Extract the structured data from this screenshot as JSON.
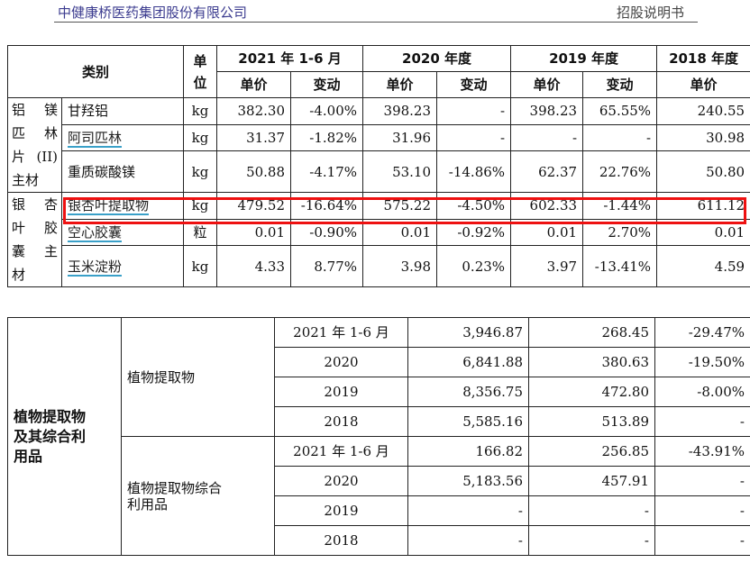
{
  "header": {
    "company": "中健康桥医药集团股份有限公司",
    "doc_type": "招股说明书"
  },
  "table1": {
    "col_category": "类别",
    "col_unit": "单位",
    "periods": [
      "2021 年 1-6 月",
      "2020 年度",
      "2019 年度",
      "2018 年度"
    ],
    "sub_price": "单价",
    "sub_change": "变动",
    "groups": [
      {
        "name": "铝镁匹林片(II)主材",
        "name_lines": [
          "铝 镁",
          "匹 林",
          "片(II)",
          "主材"
        ],
        "rows": [
          {
            "item": "甘羟铝",
            "unit": "kg",
            "vals": [
              "382.30",
              "-4.00%",
              "398.23",
              "-",
              "398.23",
              "65.55%",
              "240.55"
            ]
          },
          {
            "item": "阿司匹林",
            "unit": "kg",
            "vals": [
              "31.37",
              "-1.82%",
              "31.96",
              "-",
              "-",
              "-",
              "30.98"
            ]
          },
          {
            "item": "重质碳酸镁",
            "unit": "kg",
            "vals": [
              "50.88",
              "-4.17%",
              "53.10",
              "-14.86%",
              "62.37",
              "22.76%",
              "50.80"
            ]
          }
        ]
      },
      {
        "name": "银杏叶胶囊主材",
        "name_lines": [
          "银 杏",
          "叶 胶",
          "囊 主",
          "材"
        ],
        "rows": [
          {
            "item": "银杏叶提取物",
            "unit": "kg",
            "vals": [
              "479.52",
              "-16.64%",
              "575.22",
              "-4.50%",
              "602.33",
              "-1.44%",
              "611.12"
            ]
          },
          {
            "item": "空心胶囊",
            "unit": "粒",
            "vals": [
              "0.01",
              "-0.90%",
              "0.01",
              "-0.92%",
              "0.01",
              "2.70%",
              "0.01"
            ]
          },
          {
            "item": "玉米淀粉",
            "unit": "kg",
            "vals": [
              "4.33",
              "8.77%",
              "3.98",
              "0.23%",
              "3.97",
              "-13.41%",
              "4.59"
            ]
          }
        ]
      }
    ]
  },
  "table2": {
    "group": "植物提取物及其综合利用品",
    "group_lines": [
      "植物提取物",
      "及其综合利",
      "用品"
    ],
    "subgroups": [
      {
        "name": "植物提取物",
        "name_lines": [
          "植物提取物"
        ],
        "rows": [
          {
            "period": "2021 年 1-6 月",
            "v1": "3,946.87",
            "v2": "268.45",
            "v3": "-29.47%"
          },
          {
            "period": "2020",
            "v1": "6,841.88",
            "v2": "380.63",
            "v3": "-19.50%"
          },
          {
            "period": "2019",
            "v1": "8,356.75",
            "v2": "472.80",
            "v3": "-8.00%"
          },
          {
            "period": "2018",
            "v1": "5,585.16",
            "v2": "513.89",
            "v3": "-"
          }
        ]
      },
      {
        "name": "植物提取物综合利用品",
        "name_lines": [
          "植物提取物综合",
          "利用品"
        ],
        "rows": [
          {
            "period": "2021 年 1-6 月",
            "v1": "166.82",
            "v2": "256.85",
            "v3": "-43.91%"
          },
          {
            "period": "2020",
            "v1": "5,183.56",
            "v2": "457.91",
            "v3": "-"
          },
          {
            "period": "2019",
            "v1": "-",
            "v2": "-",
            "v3": "-"
          },
          {
            "period": "2018",
            "v1": "-",
            "v2": "-",
            "v3": "-"
          }
        ]
      }
    ]
  },
  "colors": {
    "highlight": "#ee1111",
    "link_underline": "#3aa0c8"
  }
}
